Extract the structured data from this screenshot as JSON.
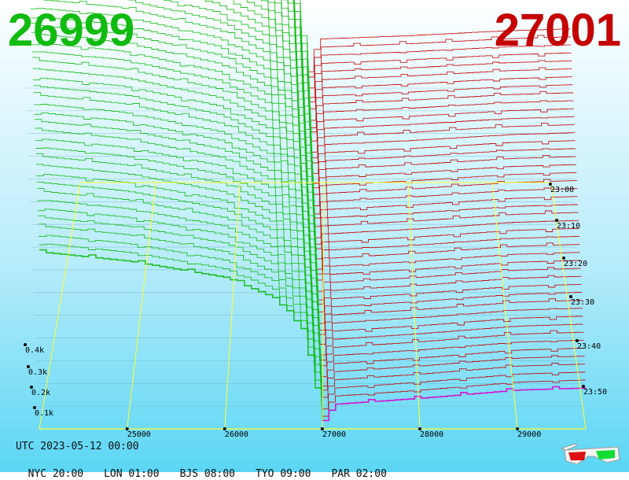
{
  "header": {
    "bid_price": "26999",
    "ask_price": "27001"
  },
  "footer": {
    "utc": "UTC 2023-05-12 00:00",
    "zones": [
      {
        "label": "NYC 20:00"
      },
      {
        "label": "LON 01:00"
      },
      {
        "label": "BJS 08:00"
      },
      {
        "label": "TYO 09:00"
      },
      {
        "label": "PAR 02:00"
      }
    ]
  },
  "colors": {
    "bid": "#11bb11",
    "ask": "#c40000",
    "latest": "#dd00cc",
    "frame": "#ffff33"
  },
  "icons": {
    "glasses": "3d-glasses-icon"
  },
  "chart_data": {
    "type": "area",
    "mode": "3d-order-book-depth",
    "price_ticks": [
      25000,
      26000,
      27000,
      28000,
      29000
    ],
    "price_tick_labels": [
      "25000",
      "26000",
      "27000",
      "28000",
      "29000"
    ],
    "price_range": [
      24100,
      29700
    ],
    "volume_ticks": [
      100,
      200,
      300,
      400
    ],
    "volume_tick_labels": [
      "0.1k",
      "0.2k",
      "0.3k",
      "0.4k"
    ],
    "time_ticks": [
      "23:00",
      "23:10",
      "23:20",
      "23:30",
      "23:40",
      "23:50"
    ],
    "time_range_minutes": [
      0,
      60
    ],
    "latest_snapshot": {
      "bid": [
        [
          24100,
          432
        ],
        [
          25000,
          410
        ],
        [
          26000,
          370
        ],
        [
          26500,
          320
        ],
        [
          26800,
          240
        ],
        [
          26999,
          20
        ]
      ],
      "ask": [
        [
          27001,
          15
        ],
        [
          27100,
          60
        ],
        [
          28000,
          75
        ],
        [
          29000,
          95
        ],
        [
          29700,
          100
        ]
      ]
    },
    "oldest_snapshot": {
      "bid": [
        [
          24100,
          560
        ],
        [
          25000,
          540
        ],
        [
          26000,
          480
        ],
        [
          26500,
          420
        ],
        [
          26800,
          300
        ],
        [
          26999,
          30
        ]
      ],
      "ask": [
        [
          27001,
          40
        ],
        [
          27100,
          120
        ],
        [
          28000,
          128
        ],
        [
          29000,
          140
        ],
        [
          29700,
          145
        ]
      ]
    }
  }
}
